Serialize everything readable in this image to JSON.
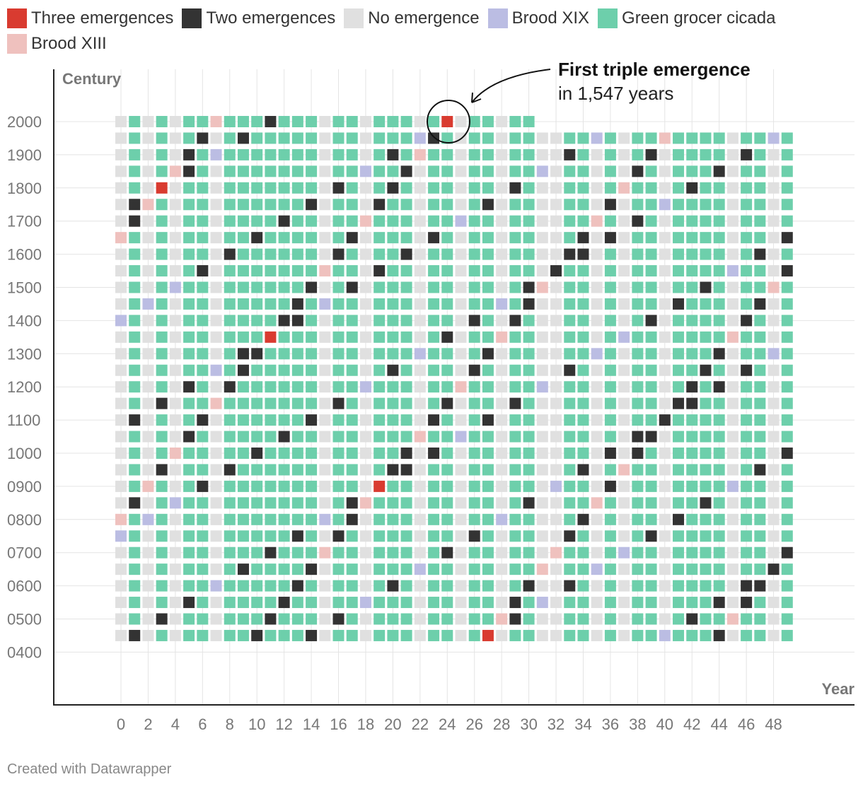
{
  "chart_data": {
    "type": "heatmap",
    "ylabel": "Century",
    "xlabel": "Year",
    "x_ticks": [
      0,
      2,
      4,
      6,
      8,
      10,
      12,
      14,
      16,
      18,
      20,
      22,
      24,
      26,
      28,
      30,
      32,
      34,
      36,
      38,
      40,
      42,
      44,
      46,
      48
    ],
    "y_ticks": [
      "2000",
      "1900",
      "1800",
      "1700",
      "1600",
      "1500",
      "1400",
      "1300",
      "1200",
      "1100",
      "1000",
      "0900",
      "0800",
      "0700",
      "0600",
      "0500",
      "0400"
    ],
    "year_start": 450,
    "year_end": 2030,
    "grid": true,
    "categories": [
      {
        "key": "three",
        "label": "Three emergences",
        "color": "#d93b30"
      },
      {
        "key": "two",
        "label": "Two emergences",
        "color": "#333333"
      },
      {
        "key": "none",
        "label": "No emergence",
        "color": "#e0e0e0"
      },
      {
        "key": "b19",
        "label": "Brood XIX",
        "color": "#bbbde3"
      },
      {
        "key": "green",
        "label": "Green grocer cicada",
        "color": "#6dcfab"
      },
      {
        "key": "b13",
        "label": "Brood XIII",
        "color": "#efc1be"
      }
    ],
    "brood_xix_cycle_years": 13,
    "brood_xix_reference_year": 2024,
    "brood_xiii_cycle_years": 17,
    "brood_xiii_reference_year": 2024,
    "green_grocer_offsets": [
      0,
      2,
      3,
      5,
      6,
      9,
      10,
      12,
      14,
      15,
      17,
      18,
      19,
      20,
      22,
      23,
      25,
      27,
      29,
      31,
      32,
      34,
      35,
      36,
      37,
      38,
      39,
      40,
      42,
      43,
      45,
      46,
      47,
      49
    ],
    "green_grocer_reference_year": 2024,
    "annotation": {
      "title": "First triple emergence",
      "subtitle": "in 1,547 years",
      "year": 2024
    }
  },
  "footer": "Created with Datawrapper"
}
